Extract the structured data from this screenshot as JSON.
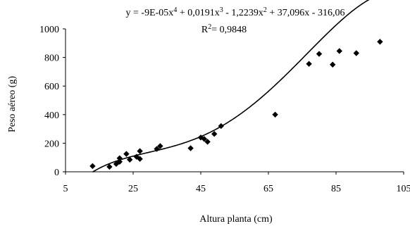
{
  "chart_data": {
    "type": "scatter",
    "title": "",
    "equation": {
      "line1_parts": [
        "y = -9E-05x",
        "4",
        " + 0,0191x",
        "3",
        " - 1,2239x",
        "2",
        " + 37,096x - 316,06"
      ],
      "line2_parts": [
        "R",
        "2",
        "= 0,9848"
      ]
    },
    "xlabel": "Altura planta (cm)",
    "ylabel": "Peso aéreo (g)",
    "xlim": [
      5,
      105
    ],
    "ylim": [
      0,
      1000
    ],
    "xticks": [
      5,
      25,
      45,
      65,
      85,
      105
    ],
    "yticks": [
      0,
      200,
      400,
      600,
      800,
      1000
    ],
    "grid": false,
    "marker": "diamond",
    "points": [
      [
        13,
        40
      ],
      [
        18,
        35
      ],
      [
        20,
        55
      ],
      [
        21,
        95
      ],
      [
        21,
        70
      ],
      [
        23,
        125
      ],
      [
        24,
        85
      ],
      [
        26,
        105
      ],
      [
        27,
        145
      ],
      [
        27,
        90
      ],
      [
        32,
        160
      ],
      [
        33,
        180
      ],
      [
        42,
        165
      ],
      [
        45,
        240
      ],
      [
        46,
        230
      ],
      [
        47,
        210
      ],
      [
        49,
        265
      ],
      [
        51,
        320
      ],
      [
        67,
        400
      ],
      [
        77,
        755
      ],
      [
        80,
        825
      ],
      [
        84,
        750
      ],
      [
        86,
        845
      ],
      [
        91,
        830
      ],
      [
        98,
        910
      ]
    ],
    "trendline": {
      "type": "polynomial",
      "coefficients": [
        -316.06,
        37.096,
        -1.2239,
        0.0191,
        -9e-05
      ],
      "x_range": [
        13,
        98
      ]
    }
  }
}
